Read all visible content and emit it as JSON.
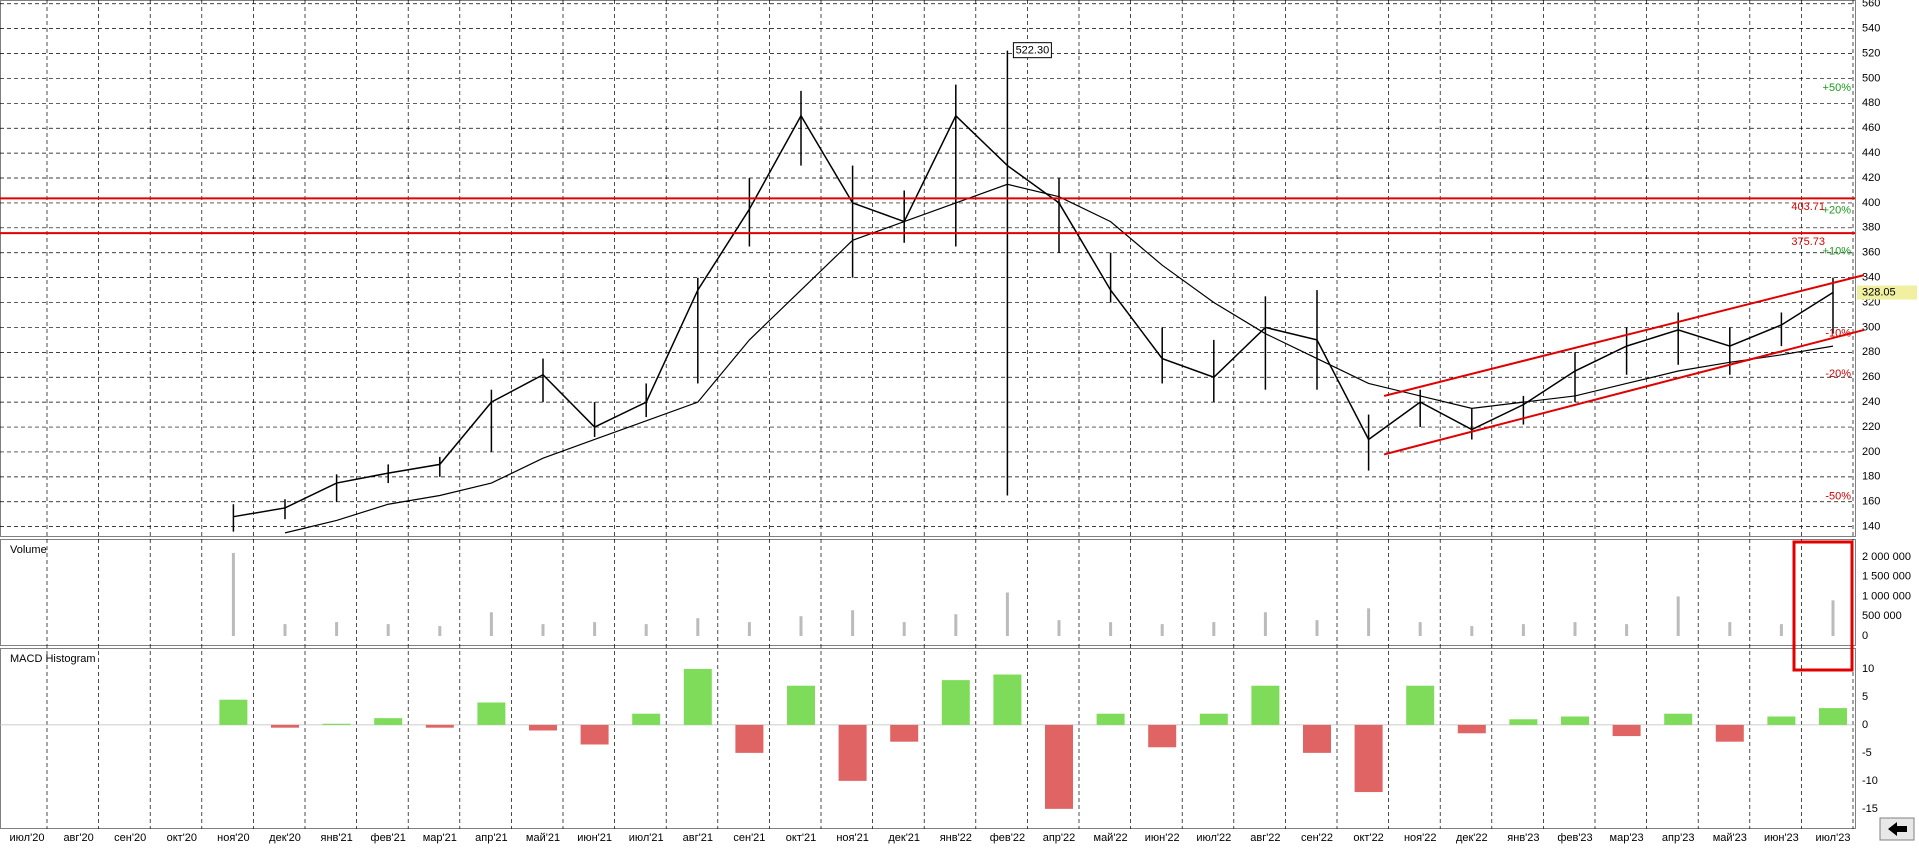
{
  "chart_data": [
    {
      "type": "price",
      "categories": [
        "июл'20",
        "авг'20",
        "сен'20",
        "окт'20",
        "ноя'20",
        "дек'20",
        "янв'21",
        "фев'21",
        "мар'21",
        "апр'21",
        "май'21",
        "июн'21",
        "июл'21",
        "авг'21",
        "сен'21",
        "окт'21",
        "ноя'21",
        "дек'21",
        "янв'22",
        "фев'22",
        "апр'22",
        "май'22",
        "июн'22",
        "июл'22",
        "авг'22",
        "сен'22",
        "окт'22",
        "ноя'22",
        "дек'22",
        "янв'23",
        "фев'23",
        "мар'23",
        "апр'23",
        "май'23",
        "июн'23",
        "июл'23"
      ],
      "series": [
        {
          "color": "#000000",
          "values": [
            null,
            null,
            null,
            null,
            148,
            155,
            175,
            183,
            190,
            240,
            262,
            220,
            240,
            330,
            395,
            470,
            400,
            385,
            470,
            430,
            400,
            330,
            275,
            260,
            300,
            290,
            210,
            240,
            218,
            238,
            265,
            285,
            298,
            285,
            302,
            328.05
          ],
          "high": [
            null,
            null,
            null,
            null,
            158,
            162,
            182,
            190,
            196,
            250,
            275,
            240,
            255,
            340,
            420,
            490,
            430,
            410,
            495,
            522.3,
            420,
            360,
            300,
            290,
            325,
            330,
            230,
            250,
            235,
            245,
            280,
            300,
            312,
            300,
            312,
            340
          ],
          "low": [
            null,
            null,
            null,
            null,
            136,
            146,
            160,
            175,
            180,
            200,
            240,
            212,
            228,
            255,
            365,
            430,
            340,
            368,
            365,
            165,
            360,
            320,
            255,
            240,
            250,
            250,
            185,
            220,
            210,
            222,
            240,
            262,
            270,
            262,
            285,
            295
          ]
        },
        {
          "color": "#000000",
          "values": [
            null,
            null,
            null,
            null,
            null,
            135,
            145,
            158,
            165,
            175,
            195,
            210,
            225,
            240,
            290,
            330,
            370,
            385,
            400,
            415,
            405,
            385,
            350,
            320,
            295,
            275,
            255,
            245,
            235,
            240,
            245,
            255,
            265,
            272,
            278,
            285
          ]
        }
      ],
      "ylim": [
        132,
        563
      ],
      "yticks": [
        140,
        160,
        180,
        200,
        220,
        240,
        260,
        280,
        300,
        320,
        340,
        360,
        380,
        400,
        420,
        440,
        460,
        480,
        500,
        520,
        540,
        560
      ],
      "grid": true,
      "hlines": [
        {
          "value": 403.71,
          "color": "#e00000"
        },
        {
          "value": 375.73,
          "color": "#e00000"
        }
      ],
      "percent_levels": [
        {
          "value": 492.08,
          "label": "+50%",
          "color": "#1a9a1a"
        },
        {
          "value": 393.66,
          "label": "+20%",
          "color": "#1a9a1a"
        },
        {
          "value": 360.86,
          "label": "+10%",
          "color": "#1a9a1a"
        },
        {
          "value": 295.25,
          "label": "-10%",
          "color": "#cc0000"
        },
        {
          "value": 262.44,
          "label": "-20%",
          "color": "#cc0000"
        },
        {
          "value": 164.03,
          "label": "-50%",
          "color": "#cc0000"
        }
      ],
      "peak": {
        "value": 522.3,
        "label": "522.30",
        "category": "фев'22"
      },
      "last": 328.05,
      "channel": [
        {
          "x": [
            26.3,
            35.6
          ],
          "y": [
            245,
            342
          ],
          "color": "#e00000"
        },
        {
          "x": [
            26.3,
            35.6
          ],
          "y": [
            198,
            298
          ],
          "color": "#e00000"
        }
      ]
    },
    {
      "type": "volume",
      "title": "Volume",
      "color": "#bbbbbb",
      "values": [
        null,
        null,
        null,
        null,
        2100000,
        300000,
        350000,
        300000,
        250000,
        600000,
        300000,
        350000,
        300000,
        450000,
        350000,
        500000,
        650000,
        350000,
        550000,
        1100000,
        400000,
        350000,
        300000,
        350000,
        600000,
        400000,
        700000,
        350000,
        250000,
        300000,
        350000,
        300000,
        1000000,
        350000,
        300000,
        900000
      ],
      "ylim": [
        -228000,
        2300000
      ],
      "yticks": [
        {
          "value": 0,
          "label": "0"
        },
        {
          "value": 500000,
          "label": "500 000"
        },
        {
          "value": 1000000,
          "label": "1 000 000"
        },
        {
          "value": 1500000,
          "label": "1 500 000"
        },
        {
          "value": 2000000,
          "label": "2 000 000"
        }
      ]
    },
    {
      "type": "macd",
      "title": "MACD Histogram",
      "positive_color": "#7fdc5a",
      "negative_color": "#e06464",
      "values": [
        null,
        null,
        null,
        null,
        4.5,
        -0.5,
        0.2,
        1.2,
        -0.5,
        4,
        -1,
        -3.5,
        2,
        10,
        -5,
        7,
        -10,
        -3,
        8,
        9,
        -15,
        2,
        -4,
        2,
        7,
        -5,
        -12,
        7,
        -1.5,
        1,
        1.5,
        -2,
        2,
        -3,
        1.5,
        3
      ],
      "ylim": [
        -18.6,
        13.2
      ],
      "yticks": [
        -15,
        -10,
        -5,
        0,
        5,
        10
      ]
    }
  ]
}
